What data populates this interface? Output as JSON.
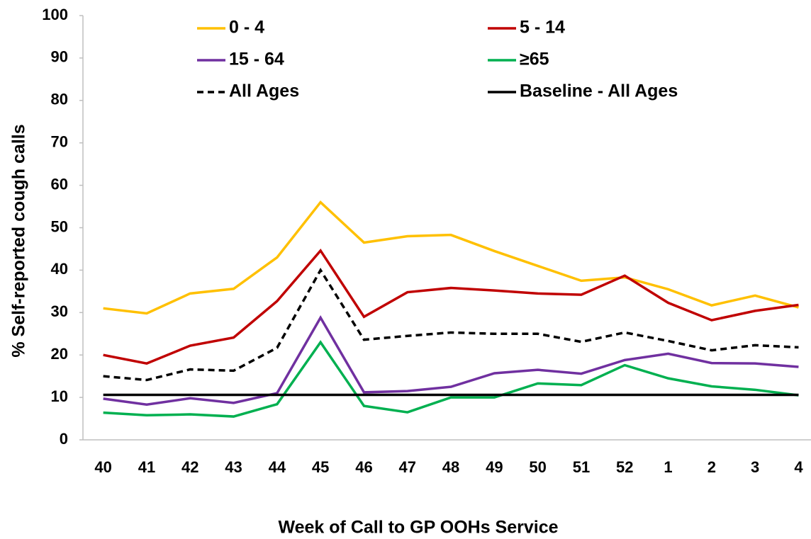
{
  "chart_data": {
    "type": "line",
    "x_label": "Week of Call to GP OOHs Service",
    "y_label": "% Self-reported cough calls",
    "categories": [
      "40",
      "41",
      "42",
      "43",
      "44",
      "45",
      "46",
      "47",
      "48",
      "49",
      "50",
      "51",
      "52",
      "1",
      "2",
      "3",
      "4"
    ],
    "ylim": [
      0,
      100
    ],
    "yticks": [
      0,
      10,
      20,
      30,
      40,
      50,
      60,
      70,
      80,
      90,
      100
    ],
    "legend": "top",
    "series": [
      {
        "name": "0 - 4",
        "color": "#ffc000",
        "dash": "solid",
        "values": [
          31,
          29.8,
          34.5,
          35.6,
          43,
          56,
          46.5,
          48,
          48.3,
          44.5,
          41,
          37.5,
          38.3,
          35.5,
          31.7,
          34,
          31.2
        ]
      },
      {
        "name": "5 - 14",
        "color": "#c00000",
        "dash": "solid",
        "values": [
          20,
          18,
          22.2,
          24.1,
          32.7,
          44.6,
          29,
          34.8,
          35.8,
          35.2,
          34.5,
          34.2,
          38.7,
          32.3,
          28.2,
          30.4,
          31.8
        ]
      },
      {
        "name": "15 - 64",
        "color": "#7030a0",
        "dash": "solid",
        "values": [
          9.7,
          8.3,
          9.8,
          8.7,
          11,
          28.8,
          11.2,
          11.5,
          12.5,
          15.7,
          16.5,
          15.6,
          18.8,
          20.3,
          18.1,
          18,
          17.2
        ]
      },
      {
        "name": "≥65",
        "color": "#00b050",
        "dash": "solid",
        "values": [
          6.4,
          5.8,
          6,
          5.5,
          8.4,
          23,
          8,
          6.5,
          10,
          10,
          13.3,
          12.9,
          17.6,
          14.5,
          12.6,
          11.8,
          10.5
        ]
      },
      {
        "name": "All Ages",
        "color": "#000000",
        "dash": "dashed",
        "values": [
          15,
          14.1,
          16.6,
          16.3,
          21.7,
          40,
          23.6,
          24.5,
          25.3,
          25,
          25,
          23.1,
          25.3,
          23.3,
          21.1,
          22.3,
          21.8
        ]
      },
      {
        "name": "Baseline - All Ages",
        "color": "#000000",
        "dash": "solid",
        "values": [
          10.6,
          10.6,
          10.6,
          10.6,
          10.6,
          10.6,
          10.6,
          10.6,
          10.6,
          10.6,
          10.6,
          10.6,
          10.6,
          10.6,
          10.6,
          10.6,
          10.6
        ]
      }
    ]
  }
}
